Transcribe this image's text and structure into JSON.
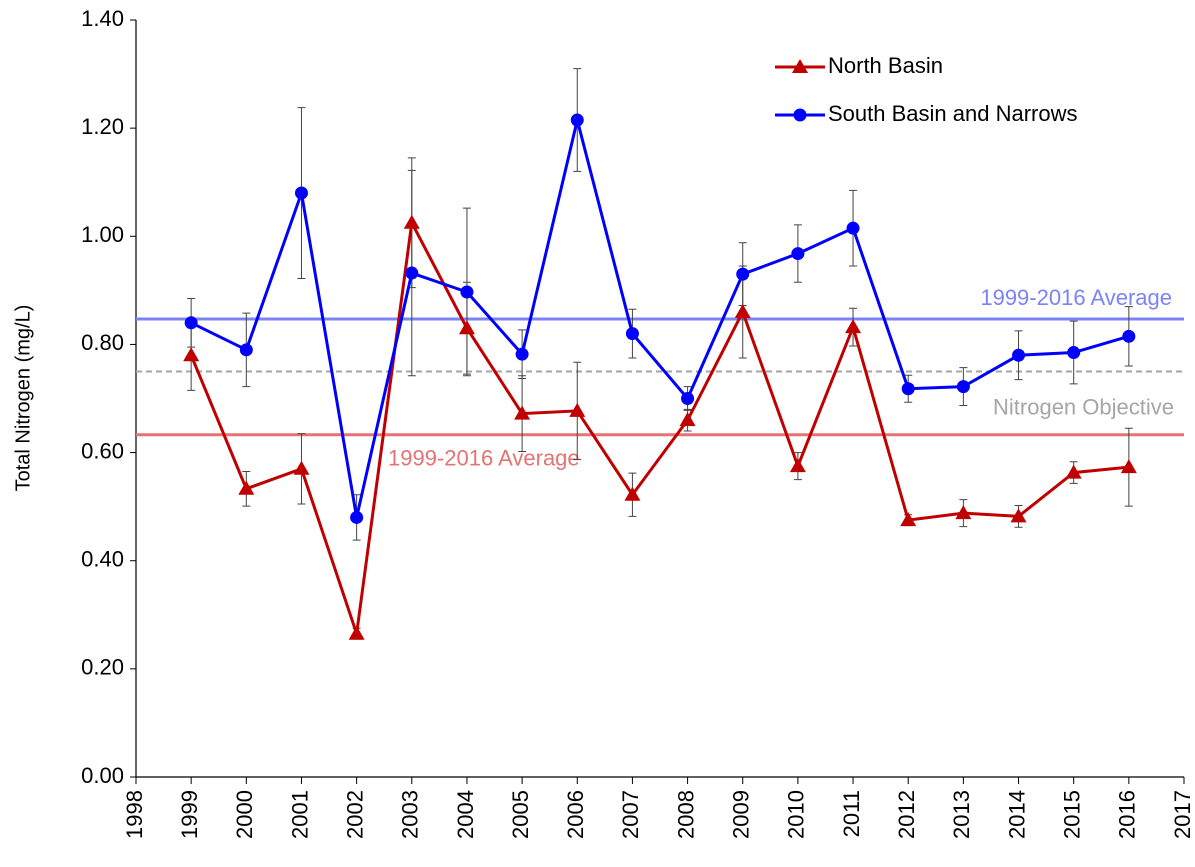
{
  "chart_data": {
    "type": "line",
    "y_label": "Total Nitrogen (mg/L)",
    "x": [
      1999,
      2000,
      2001,
      2002,
      2003,
      2004,
      2005,
      2006,
      2007,
      2008,
      2009,
      2010,
      2011,
      2012,
      2013,
      2014,
      2015,
      2016
    ],
    "series": [
      {
        "name": "North Basin",
        "color": "#c00000",
        "marker": "triangle",
        "values": [
          0.78,
          0.533,
          0.57,
          0.265,
          1.025,
          0.83,
          0.672,
          0.677,
          0.522,
          0.66,
          0.86,
          0.575,
          0.832,
          0.475,
          0.488,
          0.482,
          0.563,
          0.573
        ],
        "errors": [
          0.065,
          0.032,
          0.065,
          0.01,
          0.12,
          0.085,
          0.07,
          0.09,
          0.04,
          0.02,
          0.085,
          0.025,
          0.035,
          0.01,
          0.025,
          0.02,
          0.02,
          0.072
        ]
      },
      {
        "name": "South Basin and Narrows",
        "color": "#0000ff",
        "marker": "circle",
        "values": [
          0.84,
          0.79,
          1.08,
          0.48,
          0.932,
          0.897,
          0.782,
          1.215,
          0.82,
          0.7,
          0.93,
          0.968,
          1.015,
          0.718,
          0.722,
          0.78,
          0.785,
          0.815
        ],
        "errors": [
          0.045,
          0.068,
          0.158,
          0.042,
          0.19,
          0.155,
          0.045,
          0.095,
          0.045,
          0.022,
          0.058,
          0.053,
          0.07,
          0.025,
          0.035,
          0.045,
          0.058,
          0.055
        ]
      }
    ],
    "reference_lines": [
      {
        "label": "1999-2016 Average",
        "value": 0.847,
        "color": "#7b83f5",
        "dashed": false
      },
      {
        "label": "Nitrogen Objective",
        "value": 0.75,
        "color": "#a6a6a6",
        "dashed": true
      },
      {
        "label": "1999-2016 Average",
        "value": 0.633,
        "color": "#e57373",
        "dashed": false
      }
    ],
    "xlim": [
      1998,
      2017
    ],
    "xticks": [
      1998,
      1999,
      2000,
      2001,
      2002,
      2003,
      2004,
      2005,
      2006,
      2007,
      2008,
      2009,
      2010,
      2011,
      2012,
      2013,
      2014,
      2015,
      2016,
      2017
    ],
    "ylim": [
      0,
      1.4
    ],
    "yticks": [
      {
        "value": 0,
        "label": "0.00"
      },
      {
        "value": 0.2,
        "label": "0.20"
      },
      {
        "value": 0.4,
        "label": "0.40"
      },
      {
        "value": 0.6,
        "label": "0.60"
      },
      {
        "value": 0.8,
        "label": "0.80"
      },
      {
        "value": 1.0,
        "label": "1.00"
      },
      {
        "value": 1.2,
        "label": "1.20"
      },
      {
        "value": 1.4,
        "label": "1.40"
      }
    ],
    "grid": false,
    "legend": "top-right"
  }
}
